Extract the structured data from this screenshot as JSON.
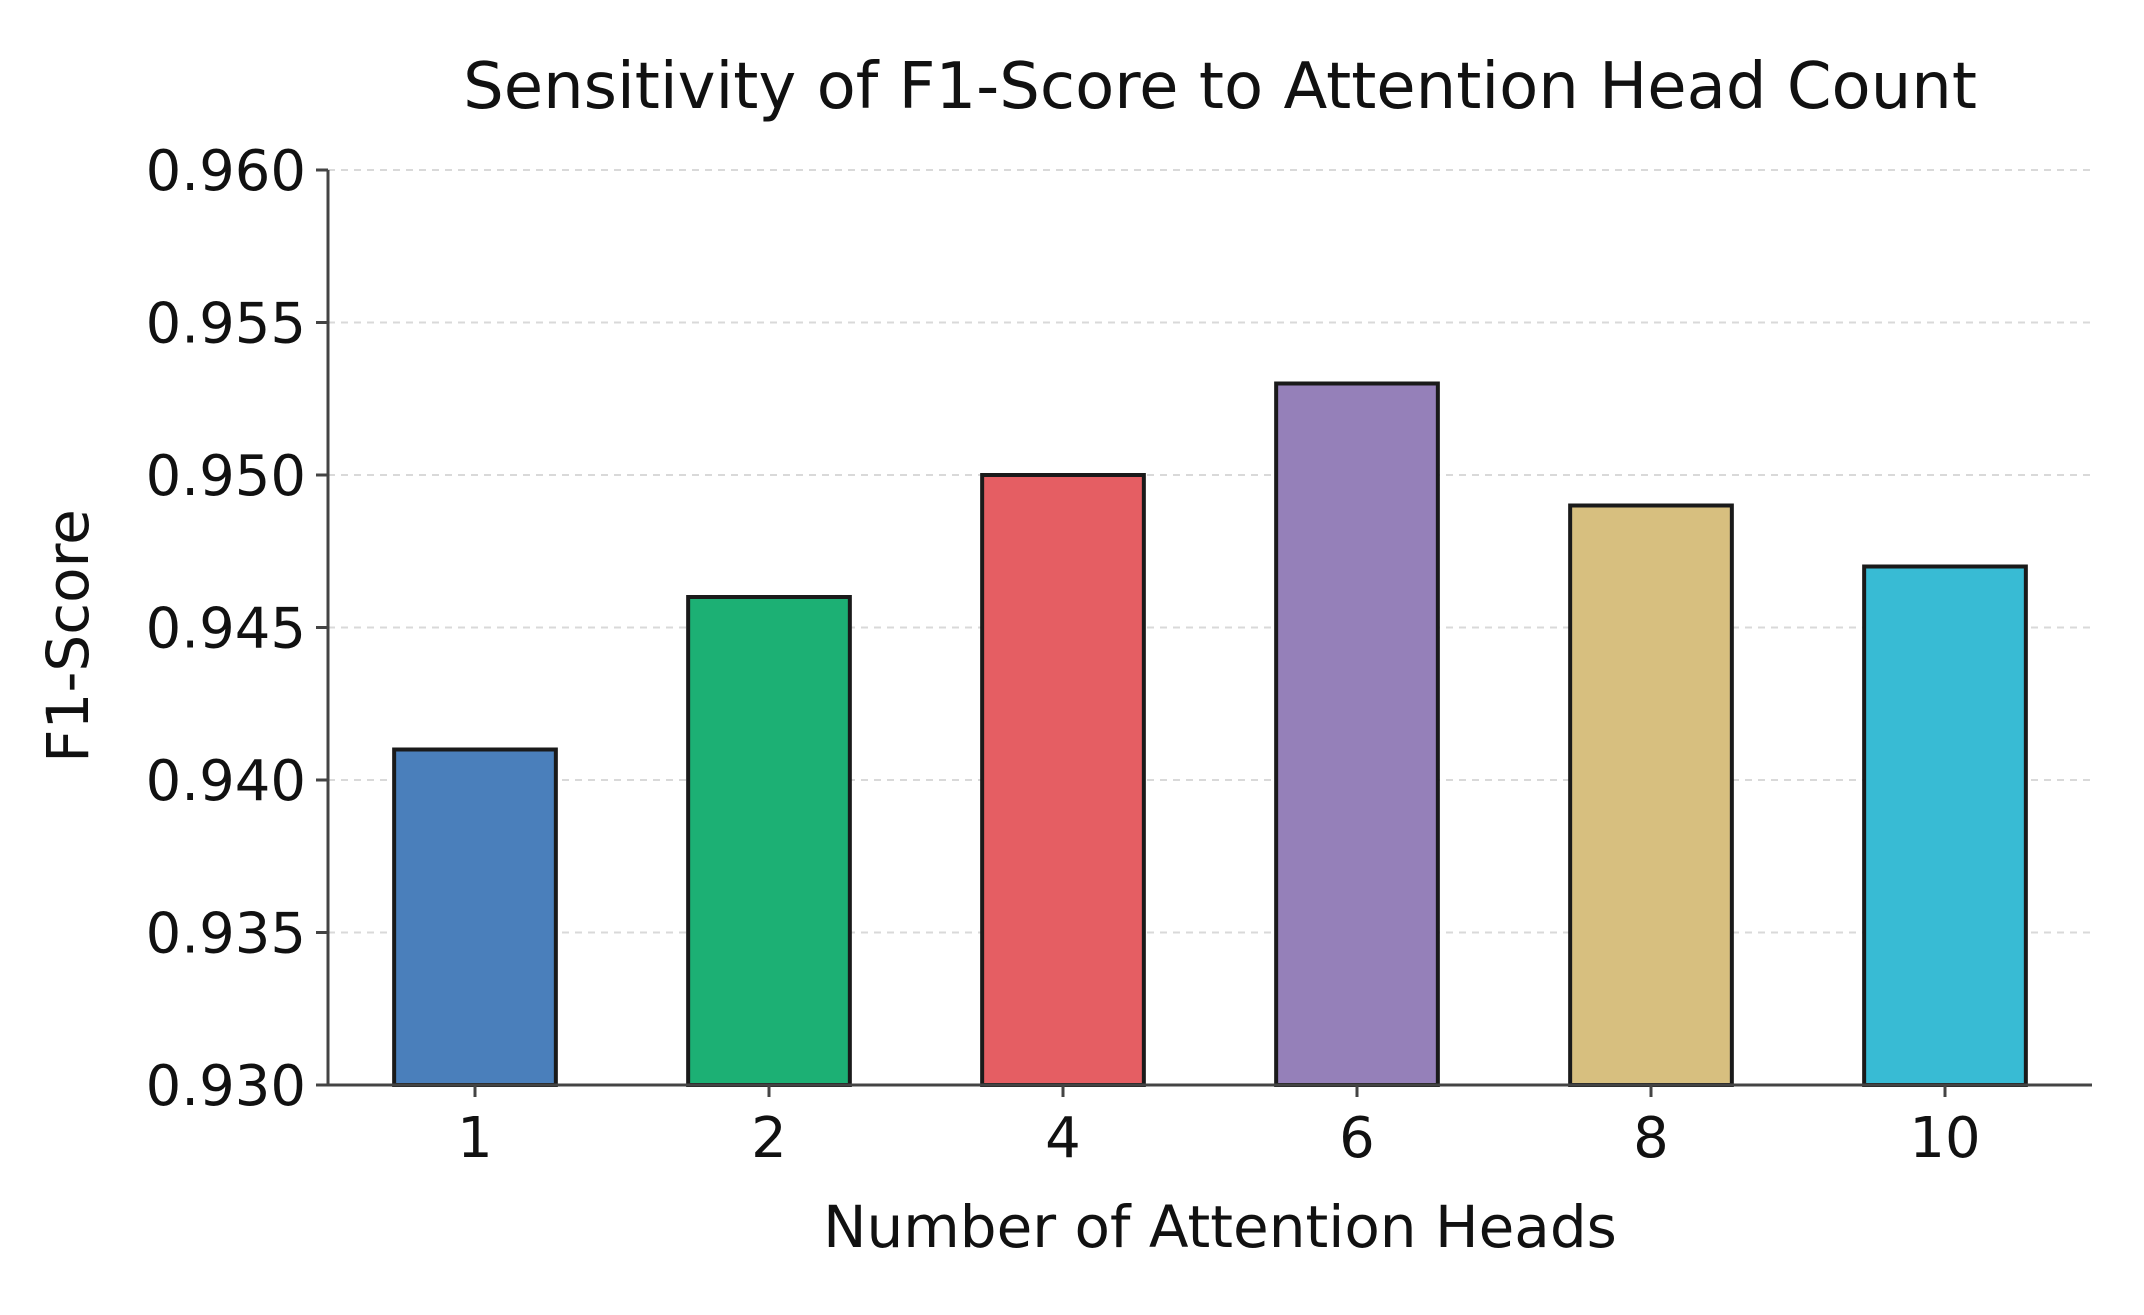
{
  "chart_data": {
    "type": "bar",
    "title": "Sensitivity of F1-Score to Attention Head Count",
    "xlabel": "Number of Attention Heads",
    "ylabel": "F1-Score",
    "categories": [
      "1",
      "2",
      "4",
      "6",
      "8",
      "10"
    ],
    "values": [
      0.941,
      0.946,
      0.95,
      0.953,
      0.949,
      0.947
    ],
    "colors": [
      "#4a7fbb",
      "#1cb074",
      "#e55e63",
      "#9580b9",
      "#d7bf7f",
      "#38bbd4"
    ],
    "ylim": [
      0.93,
      0.96
    ],
    "yticks": [
      "0.930",
      "0.935",
      "0.940",
      "0.945",
      "0.950",
      "0.955",
      "0.960"
    ],
    "grid": "horizontal-dashed",
    "legend": "none"
  }
}
